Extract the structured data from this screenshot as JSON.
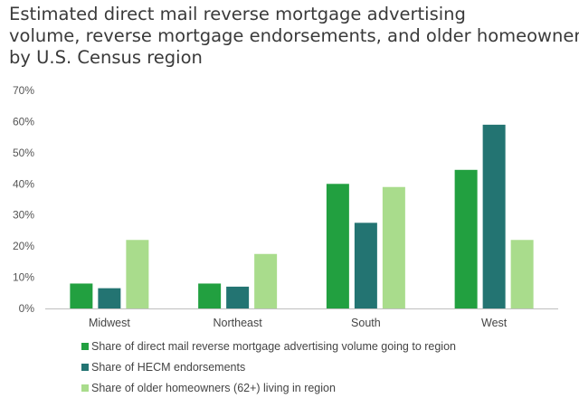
{
  "title_lines": [
    "Estimated direct mail reverse mortgage advertising",
    "volume, reverse mortgage endorsements, and older homeowners",
    "by U.S. Census region"
  ],
  "chart_data": {
    "type": "bar",
    "categories": [
      "Midwest",
      "Northeast",
      "South",
      "West"
    ],
    "series": [
      {
        "name": "Share of direct mail reverse mortgage advertising volume going to region",
        "color": "#22a040",
        "values": [
          8,
          8,
          40,
          44.5
        ]
      },
      {
        "name": "Share of HECM endorsements",
        "color": "#237472",
        "values": [
          6.5,
          7,
          27.5,
          59
        ]
      },
      {
        "name": "Share of older homeowners (62+) living in region",
        "color": "#a9dc8c",
        "values": [
          22,
          17.5,
          39,
          22
        ]
      }
    ],
    "yticks": [
      "0%",
      "10%",
      "20%",
      "30%",
      "40%",
      "50%",
      "60%",
      "70%"
    ],
    "ylim": [
      0,
      70
    ],
    "grid": false,
    "legend_position": "bottom"
  }
}
